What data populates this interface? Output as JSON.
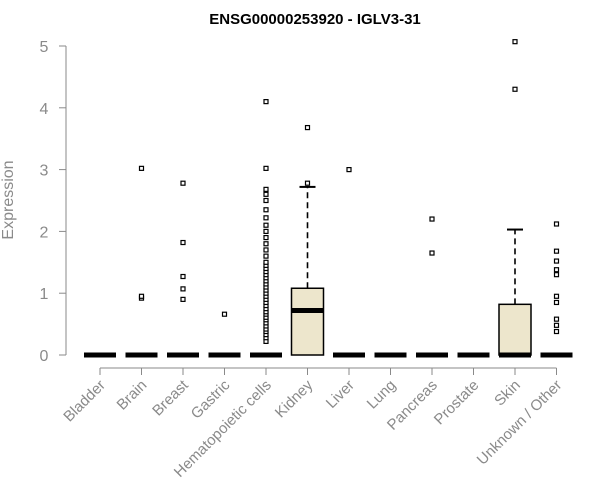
{
  "chart_data": {
    "type": "box",
    "title": "ENSG00000253920 - IGLV3-31",
    "xlabel": "",
    "ylabel": "Expression",
    "ylim": [
      0,
      5
    ],
    "yticks": [
      0,
      1,
      2,
      3,
      4,
      5
    ],
    "grid": false,
    "box_color": "#ede6cc",
    "categories": [
      "Bladder",
      "Brain",
      "Breast",
      "Gastric",
      "Hematopoietic cells",
      "Kidney",
      "Liver",
      "Lung",
      "Pancreas",
      "Prostate",
      "Skin",
      "Unknown / Other"
    ],
    "boxes": [
      {
        "category": "Bladder",
        "q1": 0,
        "median": 0,
        "q3": 0,
        "whisker_low": 0,
        "whisker_high": 0,
        "outliers": []
      },
      {
        "category": "Brain",
        "q1": 0,
        "median": 0,
        "q3": 0,
        "whisker_low": 0,
        "whisker_high": 0,
        "outliers": [
          0.92,
          0.95,
          3.02
        ]
      },
      {
        "category": "Breast",
        "q1": 0,
        "median": 0,
        "q3": 0,
        "whisker_low": 0,
        "whisker_high": 0,
        "outliers": [
          0.9,
          1.07,
          1.27,
          1.82,
          2.78
        ]
      },
      {
        "category": "Gastric",
        "q1": 0,
        "median": 0,
        "q3": 0,
        "whisker_low": 0,
        "whisker_high": 0,
        "outliers": [
          0.66
        ]
      },
      {
        "category": "Hematopoietic cells",
        "q1": 0,
        "median": 0,
        "q3": 0,
        "whisker_low": 0,
        "whisker_high": 0,
        "outliers": [
          0.22,
          0.28,
          0.33,
          0.38,
          0.42,
          0.47,
          0.52,
          0.57,
          0.61,
          0.66,
          0.7,
          0.75,
          0.8,
          0.85,
          0.9,
          0.95,
          1.0,
          1.05,
          1.1,
          1.15,
          1.2,
          1.25,
          1.3,
          1.35,
          1.4,
          1.45,
          1.5,
          1.6,
          1.7,
          1.8,
          1.9,
          2.0,
          2.1,
          2.22,
          2.35,
          2.5,
          2.6,
          2.68,
          3.02,
          4.1
        ]
      },
      {
        "category": "Kidney",
        "q1": 0,
        "median": 0.72,
        "q3": 1.08,
        "whisker_low": 0,
        "whisker_high": 2.72,
        "outliers": [
          2.78,
          3.68
        ]
      },
      {
        "category": "Liver",
        "q1": 0,
        "median": 0,
        "q3": 0,
        "whisker_low": 0,
        "whisker_high": 0,
        "outliers": [
          3.0
        ]
      },
      {
        "category": "Lung",
        "q1": 0,
        "median": 0,
        "q3": 0,
        "whisker_low": 0,
        "whisker_high": 0,
        "outliers": []
      },
      {
        "category": "Pancreas",
        "q1": 0,
        "median": 0,
        "q3": 0,
        "whisker_low": 0,
        "whisker_high": 0,
        "outliers": [
          1.65,
          2.2
        ]
      },
      {
        "category": "Prostate",
        "q1": 0,
        "median": 0,
        "q3": 0,
        "whisker_low": 0,
        "whisker_high": 0,
        "outliers": []
      },
      {
        "category": "Skin",
        "q1": 0,
        "median": 0,
        "q3": 0.82,
        "whisker_low": 0,
        "whisker_high": 2.03,
        "outliers": [
          4.3,
          5.07
        ]
      },
      {
        "category": "Unknown / Other",
        "q1": 0,
        "median": 0,
        "q3": 0,
        "whisker_low": 0,
        "whisker_high": 0,
        "outliers": [
          0.38,
          0.48,
          0.58,
          0.85,
          0.95,
          1.3,
          1.38,
          1.52,
          1.68,
          2.12
        ]
      }
    ]
  }
}
